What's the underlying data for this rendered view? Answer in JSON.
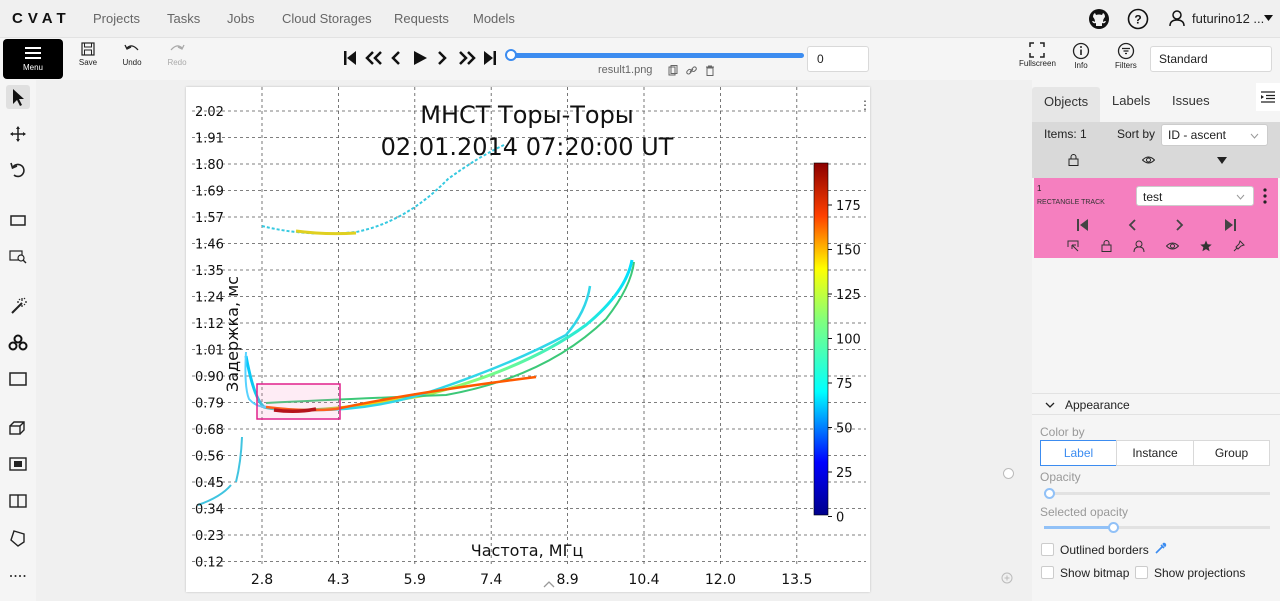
{
  "app": {
    "logo": "CVAT"
  },
  "nav": {
    "items": [
      "Projects",
      "Tasks",
      "Jobs",
      "Cloud Storages",
      "Requests",
      "Models"
    ]
  },
  "user": {
    "name": "futurino12 ..."
  },
  "toolbar": {
    "menu_label": "Menu",
    "save_label": "Save",
    "undo_label": "Undo",
    "redo_label": "Redo",
    "filename": "result1.png",
    "frame_number": "0",
    "fullscreen_label": "Fullscreen",
    "info_label": "Info",
    "filters_label": "Filters",
    "workspace": "Standard",
    "frame_progress": 1.0
  },
  "sidebar": {
    "tabs": [
      "Objects",
      "Labels",
      "Issues"
    ],
    "items_label": "Items: 1",
    "sort_label": "Sort by",
    "sort_value": "ID - ascent",
    "object": {
      "id": "1",
      "type": "RECTANGLE TRACK",
      "label": "test",
      "color": "#f57fbf"
    },
    "appearance": {
      "title": "Appearance",
      "color_by_label": "Color by",
      "color_by_options": [
        "Label",
        "Instance",
        "Group"
      ],
      "color_by_selected": "Label",
      "opacity_label": "Opacity",
      "selected_opacity_label": "Selected opacity",
      "outlined_borders_label": "Outlined borders",
      "show_bitmap_label": "Show bitmap",
      "show_projections_label": "Show projections"
    }
  },
  "image": {
    "title_line1": "МНСТ Торы-Торы",
    "title_line2": "02.01.2014 07:20:00 UT",
    "xlabel": "Частота, МГц",
    "ylabel": "Задержка, мс",
    "yticks": [
      "2.02",
      "1.91",
      "1.80",
      "1.69",
      "1.57",
      "1.46",
      "1.35",
      "1.24",
      "1.12",
      "1.01",
      "0.90",
      "0.79",
      "0.68",
      "0.56",
      "0.45",
      "0.34",
      "0.23",
      "0.12"
    ],
    "xticks": [
      "2.8",
      "4.3",
      "5.9",
      "7.4",
      "8.9",
      "10.4",
      "12.0",
      "13.5"
    ],
    "colorbar_ticks": [
      "175",
      "150",
      "125",
      "100",
      "75",
      "50",
      "25",
      "0"
    ]
  }
}
